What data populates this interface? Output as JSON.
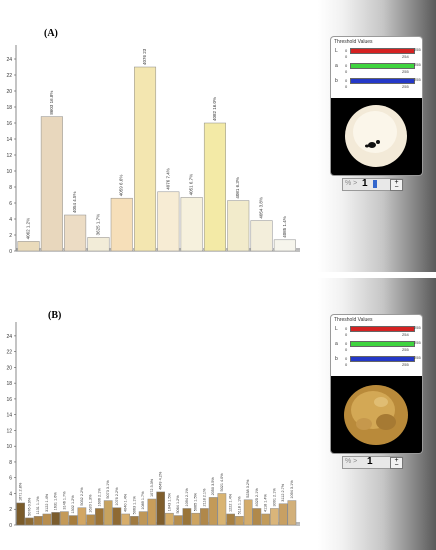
{
  "chart_data": [
    {
      "type": "bar",
      "panel_label": "(A)",
      "ylim": [
        0,
        25
      ],
      "yticks": [
        "0",
        "2",
        "4",
        "6",
        "8",
        "10",
        "12",
        "14",
        "16",
        "18",
        "20",
        "22",
        "24"
      ],
      "bar_labels": [
        "4062 1.2%",
        "8603 16.8%",
        "4054 4.5%",
        "3625 1.7%",
        "4059 6.6%",
        "4076 23",
        "4076 7.4%",
        "4051 6.7%",
        "4082 16.0%",
        "4081 6.3%",
        "4054 3.8%",
        "4085 1.4%"
      ],
      "values": [
        1.2,
        16.8,
        4.5,
        1.7,
        6.6,
        23,
        7.4,
        6.7,
        16.0,
        6.3,
        3.8,
        1.4
      ],
      "colors": [
        "#eadbbb",
        "#e8d7bd",
        "#ecdcc4",
        "#f2ecd8",
        "#f6dfb9",
        "#f3e6b0",
        "#f7ecd4",
        "#f6f1dd",
        "#f3eaa6",
        "#f2ebcb",
        "#f3eedb",
        "#f6f5ec"
      ]
    },
    {
      "type": "bar",
      "panel_label": "(B)",
      "ylim": [
        0,
        25
      ],
      "yticks": [
        "0",
        "2",
        "4",
        "6",
        "8",
        "10",
        "12",
        "14",
        "16",
        "18",
        "20",
        "22",
        "24"
      ],
      "bar_labels": [
        "1671 2.8%",
        "5076 0.9%",
        "1131 1.1%",
        "3122 1.4%",
        "1631 1.6%",
        "3146 1.7%",
        "1302 1.2%",
        "5032 2.2%",
        "1620 1.3%",
        "1606 2.1%",
        "5073 3.1%",
        "1076 2.2%",
        "4040 1.4%",
        "5063 1.1%",
        "1089 1.7%",
        "1072 3.3%",
        "4649 4.2%",
        "1043 1.5%",
        "5064 1.2%",
        "1094 2.1%",
        "5065 1.5%",
        "2118 2.1%",
        "2050 3.5%",
        "5021 4.0%",
        "1222 1.4%",
        "5118 1.1%",
        "5238 3.2%",
        "4025 2.1%",
        "4118 1.4%",
        "3091 2.1%",
        "3112 2.7%",
        "1094 3.1%"
      ],
      "values": [
        2.8,
        0.9,
        1.1,
        1.4,
        1.6,
        1.7,
        1.2,
        2.2,
        1.3,
        2.1,
        3.1,
        2.2,
        1.4,
        1.1,
        1.7,
        3.3,
        4.2,
        1.5,
        1.2,
        2.1,
        1.5,
        2.1,
        3.5,
        4.0,
        1.4,
        1.1,
        3.2,
        2.1,
        1.4,
        2.1,
        2.7,
        3.1
      ],
      "colors": [
        "#7a5b2a",
        "#8c6a34",
        "#a77f43",
        "#b88e4e",
        "#7b5d2e",
        "#c49a58",
        "#a67c3c",
        "#d2a663",
        "#b58b49",
        "#9b7336",
        "#c7a35f",
        "#8f6a33",
        "#d7ad6a",
        "#a07a40",
        "#bf9757",
        "#c99e5a",
        "#7f5e2c",
        "#d6ad66",
        "#b58d4c",
        "#9a7538",
        "#cda461",
        "#b0884a",
        "#c39a58",
        "#d9b472",
        "#a78042",
        "#c59d5b",
        "#d4ac6b",
        "#b1894a",
        "#c29b5a",
        "#dab57a",
        "#c8a063",
        "#d2b07a"
      ]
    }
  ],
  "threshold_panels": [
    {
      "title": "Threshold Values",
      "rows": [
        {
          "letter": "L",
          "lo": "0",
          "hi": "255",
          "lo2": "0",
          "hi2": "254",
          "color": "#d52222"
        },
        {
          "letter": "a",
          "lo": "0",
          "hi": "255",
          "lo2": "0",
          "hi2": "255",
          "color": "#3fd43f"
        },
        {
          "letter": "b",
          "lo": "0",
          "hi": "255",
          "lo2": "0",
          "hi2": "255",
          "color": "#2438c8"
        }
      ],
      "control_text": "% >",
      "control_value": "1"
    },
    {
      "title": "Threshold Values",
      "rows": [
        {
          "letter": "L",
          "lo": "0",
          "hi": "255",
          "lo2": "0",
          "hi2": "254",
          "color": "#d52222"
        },
        {
          "letter": "a",
          "lo": "0",
          "hi": "255",
          "lo2": "0",
          "hi2": "255",
          "color": "#3fd43f"
        },
        {
          "letter": "b",
          "lo": "0",
          "hi": "255",
          "lo2": "0",
          "hi2": "255",
          "color": "#2438c8"
        }
      ],
      "control_text": "% >",
      "control_value": "1"
    }
  ],
  "stepper_glyphs": {
    "up": "+",
    "down": "−"
  }
}
